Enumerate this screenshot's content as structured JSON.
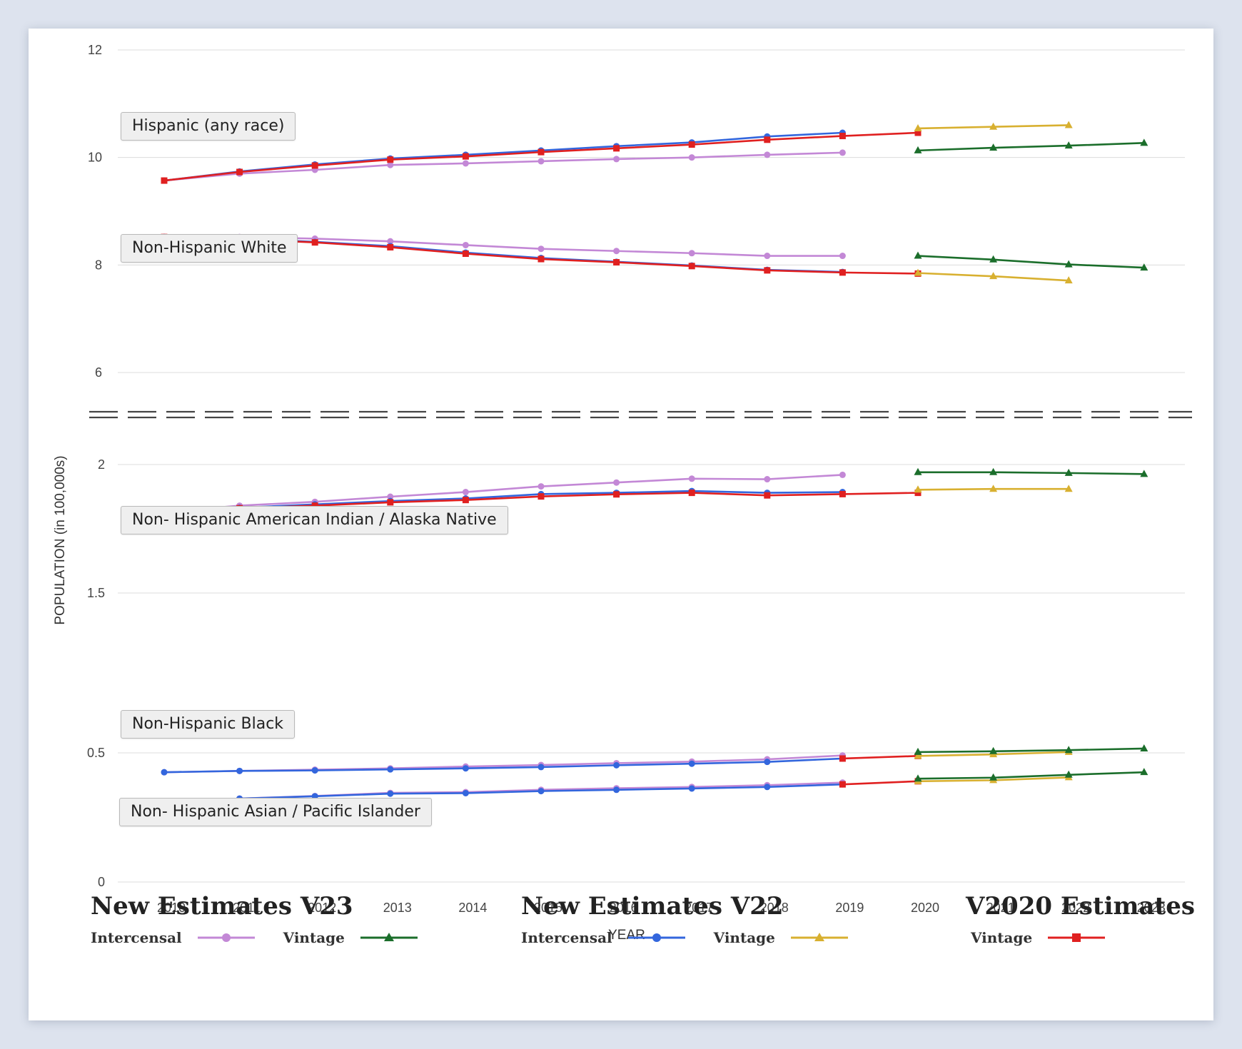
{
  "chart_data": {
    "type": "line",
    "ylabel": "POPULATION (in 100,000s)",
    "xlabel": "YEAR",
    "x_ticks": [
      "2010",
      "2011",
      "2012",
      "2013",
      "2014",
      "2015",
      "2016",
      "2017",
      "2018",
      "2019",
      "2020",
      "2021",
      "2022",
      "2023"
    ],
    "y_ticks_upper": [
      "12",
      "10",
      "8",
      "6"
    ],
    "y_ticks_lower": [
      "2",
      "1.5",
      "0.5",
      "0"
    ],
    "axis_break": true,
    "grid": true,
    "legend_placement": "bottom",
    "group_labels": [
      "Hispanic (any race)",
      "Non-Hispanic White",
      "Non- Hispanic American Indian / Alaska Native",
      "Non-Hispanic Black",
      "Non- Hispanic Asian / Pacific Islander"
    ],
    "series": [
      {
        "group": "Hispanic (any race)",
        "name": "New Estimates V23 Intercensal",
        "x": [
          2010,
          2011,
          2012,
          2013,
          2014,
          2015,
          2016,
          2017,
          2018,
          2019
        ],
        "values": [
          9.57,
          9.7,
          9.77,
          9.86,
          9.89,
          9.93,
          9.97,
          10.0,
          10.05,
          10.09
        ]
      },
      {
        "group": "Hispanic (any race)",
        "name": "New Estimates V22 Intercensal",
        "x": [
          2010,
          2011,
          2012,
          2013,
          2014,
          2015,
          2016,
          2017,
          2018,
          2019
        ],
        "values": [
          9.57,
          9.74,
          9.87,
          9.98,
          10.05,
          10.13,
          10.21,
          10.28,
          10.39,
          10.46
        ]
      },
      {
        "group": "Hispanic (any race)",
        "name": "V2020 Estimates Vintage",
        "x": [
          2010,
          2011,
          2012,
          2013,
          2014,
          2015,
          2016,
          2017,
          2018,
          2019,
          2020
        ],
        "values": [
          9.57,
          9.73,
          9.85,
          9.96,
          10.02,
          10.1,
          10.17,
          10.24,
          10.33,
          10.4,
          10.46
        ]
      },
      {
        "group": "Hispanic (any race)",
        "name": "New Estimates V23 Vintage",
        "x": [
          2020,
          2021,
          2022,
          2023
        ],
        "values": [
          10.13,
          10.18,
          10.22,
          10.27
        ]
      },
      {
        "group": "Hispanic (any race)",
        "name": "New Estimates V22 Vintage",
        "x": [
          2020,
          2021,
          2022
        ],
        "values": [
          10.54,
          10.57,
          10.6
        ]
      },
      {
        "group": "Non-Hispanic White",
        "name": "New Estimates V23 Intercensal",
        "x": [
          2010,
          2011,
          2012,
          2013,
          2014,
          2015,
          2016,
          2017,
          2018,
          2019
        ],
        "values": [
          8.52,
          8.52,
          8.49,
          8.44,
          8.37,
          8.3,
          8.26,
          8.22,
          8.17,
          8.17
        ]
      },
      {
        "group": "Non-Hispanic White",
        "name": "New Estimates V22 Intercensal",
        "x": [
          2010,
          2011,
          2012,
          2013,
          2014,
          2015,
          2016,
          2017,
          2018,
          2019
        ],
        "values": [
          8.52,
          8.49,
          8.43,
          8.35,
          8.23,
          8.13,
          8.06,
          7.99,
          7.91,
          7.87
        ]
      },
      {
        "group": "Non-Hispanic White",
        "name": "V2020 Estimates Vintage",
        "x": [
          2010,
          2011,
          2012,
          2013,
          2014,
          2015,
          2016,
          2017,
          2018,
          2019,
          2020
        ],
        "values": [
          8.52,
          8.48,
          8.42,
          8.33,
          8.21,
          8.11,
          8.05,
          7.98,
          7.9,
          7.86,
          7.84
        ]
      },
      {
        "group": "Non-Hispanic White",
        "name": "New Estimates V23 Vintage",
        "x": [
          2020,
          2021,
          2022,
          2023
        ],
        "values": [
          8.17,
          8.1,
          8.01,
          7.95
        ]
      },
      {
        "group": "Non-Hispanic White",
        "name": "New Estimates V22 Vintage",
        "x": [
          2020,
          2021,
          2022
        ],
        "values": [
          7.85,
          7.79,
          7.71
        ]
      },
      {
        "group": "Non- Hispanic American Indian / Alaska Native",
        "name": "New Estimates V23 Intercensal",
        "x": [
          2010,
          2011,
          2012,
          2013,
          2014,
          2015,
          2016,
          2017,
          2018,
          2019
        ],
        "values": [
          1.815,
          1.84,
          1.855,
          1.875,
          1.893,
          1.915,
          1.93,
          1.945,
          1.943,
          1.96
        ]
      },
      {
        "group": "Non- Hispanic American Indian / Alaska Native",
        "name": "New Estimates V22 Intercensal",
        "x": [
          2010,
          2011,
          2012,
          2013,
          2014,
          2015,
          2016,
          2017,
          2018,
          2019
        ],
        "values": [
          1.815,
          1.832,
          1.845,
          1.858,
          1.868,
          1.885,
          1.89,
          1.897,
          1.89,
          1.893
        ]
      },
      {
        "group": "Non- Hispanic American Indian / Alaska Native",
        "name": "V2020 Estimates Vintage",
        "x": [
          2010,
          2011,
          2012,
          2013,
          2014,
          2015,
          2016,
          2017,
          2018,
          2019,
          2020
        ],
        "values": [
          1.815,
          1.83,
          1.84,
          1.853,
          1.862,
          1.876,
          1.884,
          1.89,
          1.88,
          1.885,
          1.89
        ]
      },
      {
        "group": "Non- Hispanic American Indian / Alaska Native",
        "name": "New Estimates V23 Vintage",
        "x": [
          2020,
          2021,
          2022,
          2023
        ],
        "values": [
          1.97,
          1.97,
          1.967,
          1.963
        ]
      },
      {
        "group": "Non- Hispanic American Indian / Alaska Native",
        "name": "New Estimates V22 Vintage",
        "x": [
          2020,
          2021,
          2022
        ],
        "values": [
          1.902,
          1.905,
          1.905
        ]
      },
      {
        "group": "Non-Hispanic Black",
        "name": "New Estimates V23 Intercensal",
        "x": [
          2010,
          2011,
          2012,
          2013,
          2014,
          2015,
          2016,
          2017,
          2018,
          2019
        ],
        "values": [
          0.425,
          0.43,
          0.435,
          0.44,
          0.447,
          0.453,
          0.46,
          0.466,
          0.475,
          0.49
        ]
      },
      {
        "group": "Non-Hispanic Black",
        "name": "New Estimates V22 Intercensal",
        "x": [
          2010,
          2011,
          2012,
          2013,
          2014,
          2015,
          2016,
          2017,
          2018,
          2019
        ],
        "values": [
          0.425,
          0.43,
          0.432,
          0.436,
          0.44,
          0.445,
          0.452,
          0.458,
          0.465,
          0.478
        ]
      },
      {
        "group": "Non-Hispanic Black",
        "name": "V2020 Estimates Vintage",
        "x": [
          2019,
          2020
        ],
        "values": [
          0.478,
          0.488
        ]
      },
      {
        "group": "Non-Hispanic Black",
        "name": "New Estimates V23 Vintage",
        "x": [
          2020,
          2021,
          2022,
          2023
        ],
        "values": [
          0.505,
          0.51,
          0.517,
          0.527
        ]
      },
      {
        "group": "Non-Hispanic Black",
        "name": "New Estimates V22 Vintage",
        "x": [
          2020,
          2021,
          2022
        ],
        "values": [
          0.488,
          0.494,
          0.505
        ]
      },
      {
        "group": "Non- Hispanic Asian / Pacific Islander",
        "name": "New Estimates V23 Intercensal",
        "x": [
          2010,
          2011,
          2012,
          2013,
          2014,
          2015,
          2016,
          2017,
          2018,
          2019
        ],
        "values": [
          0.307,
          0.323,
          0.333,
          0.345,
          0.348,
          0.357,
          0.363,
          0.368,
          0.375,
          0.385
        ]
      },
      {
        "group": "Non- Hispanic Asian / Pacific Islander",
        "name": "New Estimates V22 Intercensal",
        "x": [
          2010,
          2011,
          2012,
          2013,
          2014,
          2015,
          2016,
          2017,
          2018,
          2019
        ],
        "values": [
          0.307,
          0.323,
          0.332,
          0.342,
          0.344,
          0.352,
          0.357,
          0.362,
          0.368,
          0.378
        ]
      },
      {
        "group": "Non- Hispanic Asian / Pacific Islander",
        "name": "V2020 Estimates Vintage",
        "x": [
          2019,
          2020
        ],
        "values": [
          0.378,
          0.39
        ]
      },
      {
        "group": "Non- Hispanic Asian / Pacific Islander",
        "name": "New Estimates V23 Vintage",
        "x": [
          2020,
          2021,
          2022,
          2023
        ],
        "values": [
          0.4,
          0.404,
          0.415,
          0.425
        ]
      },
      {
        "group": "Non- Hispanic Asian / Pacific Islander",
        "name": "New Estimates V22 Vintage",
        "x": [
          2020,
          2021,
          2022
        ],
        "values": [
          0.39,
          0.394,
          0.405
        ]
      }
    ]
  },
  "legend": {
    "groups": [
      {
        "title": "New Estimates V23",
        "items": [
          {
            "label": "Intercensal",
            "color": "#c388d6",
            "marker": "circle"
          },
          {
            "label": "Vintage",
            "color": "#1b6e2b",
            "marker": "triangle"
          }
        ]
      },
      {
        "title": "New Estimates V22",
        "items": [
          {
            "label": "Intercensal",
            "color": "#3366dd",
            "marker": "circle"
          },
          {
            "label": "Vintage",
            "color": "#d8b030",
            "marker": "triangle"
          }
        ]
      },
      {
        "title": "V2020 Estimates",
        "items": [
          {
            "label": "Vintage",
            "color": "#e02020",
            "marker": "square"
          }
        ]
      }
    ]
  },
  "colors": {
    "New Estimates V23 Intercensal": "#c388d6",
    "New Estimates V23 Vintage": "#1b6e2b",
    "New Estimates V22 Intercensal": "#3366dd",
    "New Estimates V22 Vintage": "#d8b030",
    "V2020 Estimates Vintage": "#e02020"
  }
}
